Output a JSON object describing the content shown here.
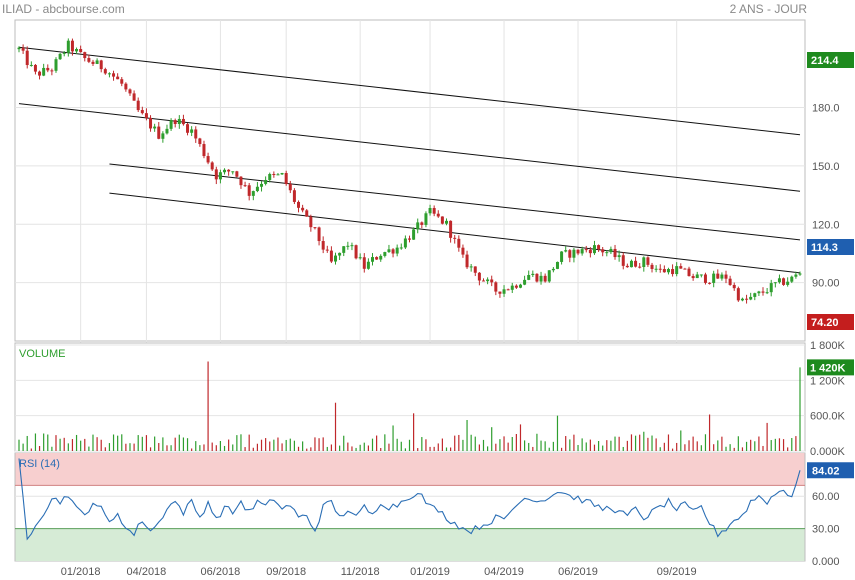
{
  "header": {
    "symbol_source": "ILIAD - abcbourse.com",
    "period": "2 ANS - JOUR"
  },
  "colors": {
    "up": "#2e9e2e",
    "down": "#c0282b",
    "rsi_line": "#2a6eb5",
    "rsi_overbought_zone": "#f7cfcf",
    "rsi_oversold_zone": "#d6ebd6",
    "tag_green": "#1e8a1e",
    "tag_red": "#c41e1e",
    "tag_blue": "#1f5fb0",
    "grid": "#e4e4e4",
    "volume_label": "#2e9e2e",
    "rsi_label": "#2a6eb5"
  },
  "price_panel": {
    "yticks": [
      "180.0",
      "150.0",
      "120.0",
      "90.00"
    ],
    "tags": [
      {
        "text": "214.4",
        "color": "tag_green"
      },
      {
        "text": "114.3",
        "color": "tag_blue"
      },
      {
        "text": "74.20",
        "color": "tag_red"
      }
    ]
  },
  "volume_panel": {
    "label": "VOLUME",
    "yticks": [
      "1 800K",
      "1 200K",
      "600.0K",
      "0.000K"
    ],
    "tag": "1 420K"
  },
  "rsi_panel": {
    "label": "RSI (14)",
    "yticks": [
      "60.00",
      "30.00",
      "0.000"
    ],
    "tag": "84.02"
  },
  "xaxis": {
    "labels": [
      "01/2018",
      "04/2018",
      "06/2018",
      "09/2018",
      "11/2018",
      "01/2019",
      "04/2019",
      "06/2019",
      "09/2019"
    ]
  },
  "chart_data": [
    {
      "type": "candlestick",
      "title": "ILIAD",
      "ylim": [
        60,
        225
      ],
      "ticks": [
        180,
        150,
        120,
        90
      ],
      "price_path": [
        [
          0,
          210
        ],
        [
          4,
          197
        ],
        [
          8,
          200
        ],
        [
          12,
          212
        ],
        [
          16,
          205
        ],
        [
          21,
          200
        ],
        [
          25,
          192
        ],
        [
          29,
          178
        ],
        [
          34,
          166
        ],
        [
          38,
          174
        ],
        [
          42,
          168
        ],
        [
          48,
          145
        ],
        [
          52,
          148
        ],
        [
          56,
          136
        ],
        [
          60,
          144
        ],
        [
          64,
          145
        ],
        [
          68,
          128
        ],
        [
          72,
          116
        ],
        [
          76,
          100
        ],
        [
          80,
          110
        ],
        [
          84,
          98
        ],
        [
          88,
          105
        ],
        [
          92,
          108
        ],
        [
          96,
          116
        ],
        [
          100,
          126
        ],
        [
          104,
          120
        ],
        [
          108,
          102
        ],
        [
          112,
          93
        ],
        [
          116,
          86
        ],
        [
          120,
          88
        ],
        [
          124,
          94
        ],
        [
          128,
          92
        ],
        [
          132,
          104
        ],
        [
          136,
          106
        ],
        [
          140,
          108
        ],
        [
          144,
          105
        ],
        [
          148,
          99
        ],
        [
          152,
          101
        ],
        [
          156,
          96
        ],
        [
          160,
          97
        ],
        [
          164,
          93
        ],
        [
          168,
          92
        ],
        [
          172,
          93
        ],
        [
          176,
          80
        ],
        [
          180,
          84
        ],
        [
          184,
          89
        ],
        [
          188,
          92
        ],
        [
          190,
          95
        ]
      ],
      "channel_lines": [
        {
          "from": [
            0,
            211
          ],
          "to": [
            190,
            166
          ]
        },
        {
          "from": [
            0,
            182
          ],
          "to": [
            190,
            137
          ]
        },
        {
          "from": [
            22,
            151
          ],
          "to": [
            190,
            112
          ]
        },
        {
          "from": [
            22,
            136
          ],
          "to": [
            190,
            95
          ]
        }
      ],
      "last_price": 94.5
    },
    {
      "type": "bar",
      "title": "VOLUME",
      "ylim": [
        0,
        1800
      ],
      "ticks": [
        1800,
        1200,
        600,
        0
      ],
      "unit": "K",
      "spikes": [
        [
          46,
          1520
        ],
        [
          77,
          820
        ],
        [
          96,
          640
        ],
        [
          131,
          600
        ],
        [
          168,
          620
        ],
        [
          190,
          1420
        ]
      ],
      "baseline_range": [
        40,
        300
      ]
    },
    {
      "type": "line",
      "title": "RSI (14)",
      "ylim": [
        0,
        100
      ],
      "ticks": [
        60,
        30,
        0
      ],
      "zones": {
        "overbought": [
          70,
          100
        ],
        "oversold": [
          0,
          30
        ]
      },
      "rsi_path": [
        [
          0,
          95
        ],
        [
          2,
          20
        ],
        [
          4,
          35
        ],
        [
          6,
          45
        ],
        [
          8,
          58
        ],
        [
          10,
          55
        ],
        [
          12,
          62
        ],
        [
          14,
          48
        ],
        [
          16,
          42
        ],
        [
          18,
          55
        ],
        [
          20,
          48
        ],
        [
          22,
          35
        ],
        [
          24,
          45
        ],
        [
          26,
          30
        ],
        [
          28,
          25
        ],
        [
          30,
          38
        ],
        [
          32,
          28
        ],
        [
          34,
          35
        ],
        [
          36,
          50
        ],
        [
          38,
          55
        ],
        [
          40,
          45
        ],
        [
          42,
          55
        ],
        [
          44,
          40
        ],
        [
          46,
          55
        ],
        [
          48,
          38
        ],
        [
          50,
          50
        ],
        [
          52,
          45
        ],
        [
          54,
          55
        ],
        [
          56,
          45
        ],
        [
          58,
          55
        ],
        [
          60,
          50
        ],
        [
          62,
          58
        ],
        [
          64,
          48
        ],
        [
          66,
          52
        ],
        [
          68,
          40
        ],
        [
          70,
          42
        ],
        [
          72,
          28
        ],
        [
          74,
          50
        ],
        [
          76,
          55
        ],
        [
          78,
          40
        ],
        [
          80,
          48
        ],
        [
          82,
          40
        ],
        [
          84,
          50
        ],
        [
          86,
          42
        ],
        [
          88,
          55
        ],
        [
          90,
          50
        ],
        [
          92,
          52
        ],
        [
          94,
          58
        ],
        [
          96,
          62
        ],
        [
          98,
          60
        ],
        [
          100,
          50
        ],
        [
          102,
          48
        ],
        [
          104,
          40
        ],
        [
          106,
          35
        ],
        [
          108,
          30
        ],
        [
          110,
          28
        ],
        [
          112,
          32
        ],
        [
          114,
          35
        ],
        [
          116,
          40
        ],
        [
          118,
          38
        ],
        [
          120,
          48
        ],
        [
          122,
          55
        ],
        [
          124,
          60
        ],
        [
          126,
          55
        ],
        [
          128,
          58
        ],
        [
          130,
          62
        ],
        [
          132,
          65
        ],
        [
          134,
          60
        ],
        [
          136,
          58
        ],
        [
          138,
          55
        ],
        [
          140,
          52
        ],
        [
          142,
          48
        ],
        [
          144,
          50
        ],
        [
          146,
          45
        ],
        [
          148,
          42
        ],
        [
          150,
          48
        ],
        [
          152,
          40
        ],
        [
          154,
          45
        ],
        [
          156,
          50
        ],
        [
          158,
          55
        ],
        [
          160,
          48
        ],
        [
          162,
          52
        ],
        [
          164,
          45
        ],
        [
          166,
          50
        ],
        [
          168,
          35
        ],
        [
          170,
          25
        ],
        [
          172,
          30
        ],
        [
          174,
          38
        ],
        [
          176,
          42
        ],
        [
          178,
          55
        ],
        [
          180,
          60
        ],
        [
          182,
          55
        ],
        [
          184,
          62
        ],
        [
          186,
          66
        ],
        [
          188,
          60
        ],
        [
          190,
          84
        ]
      ],
      "last_value": 84.02
    }
  ]
}
